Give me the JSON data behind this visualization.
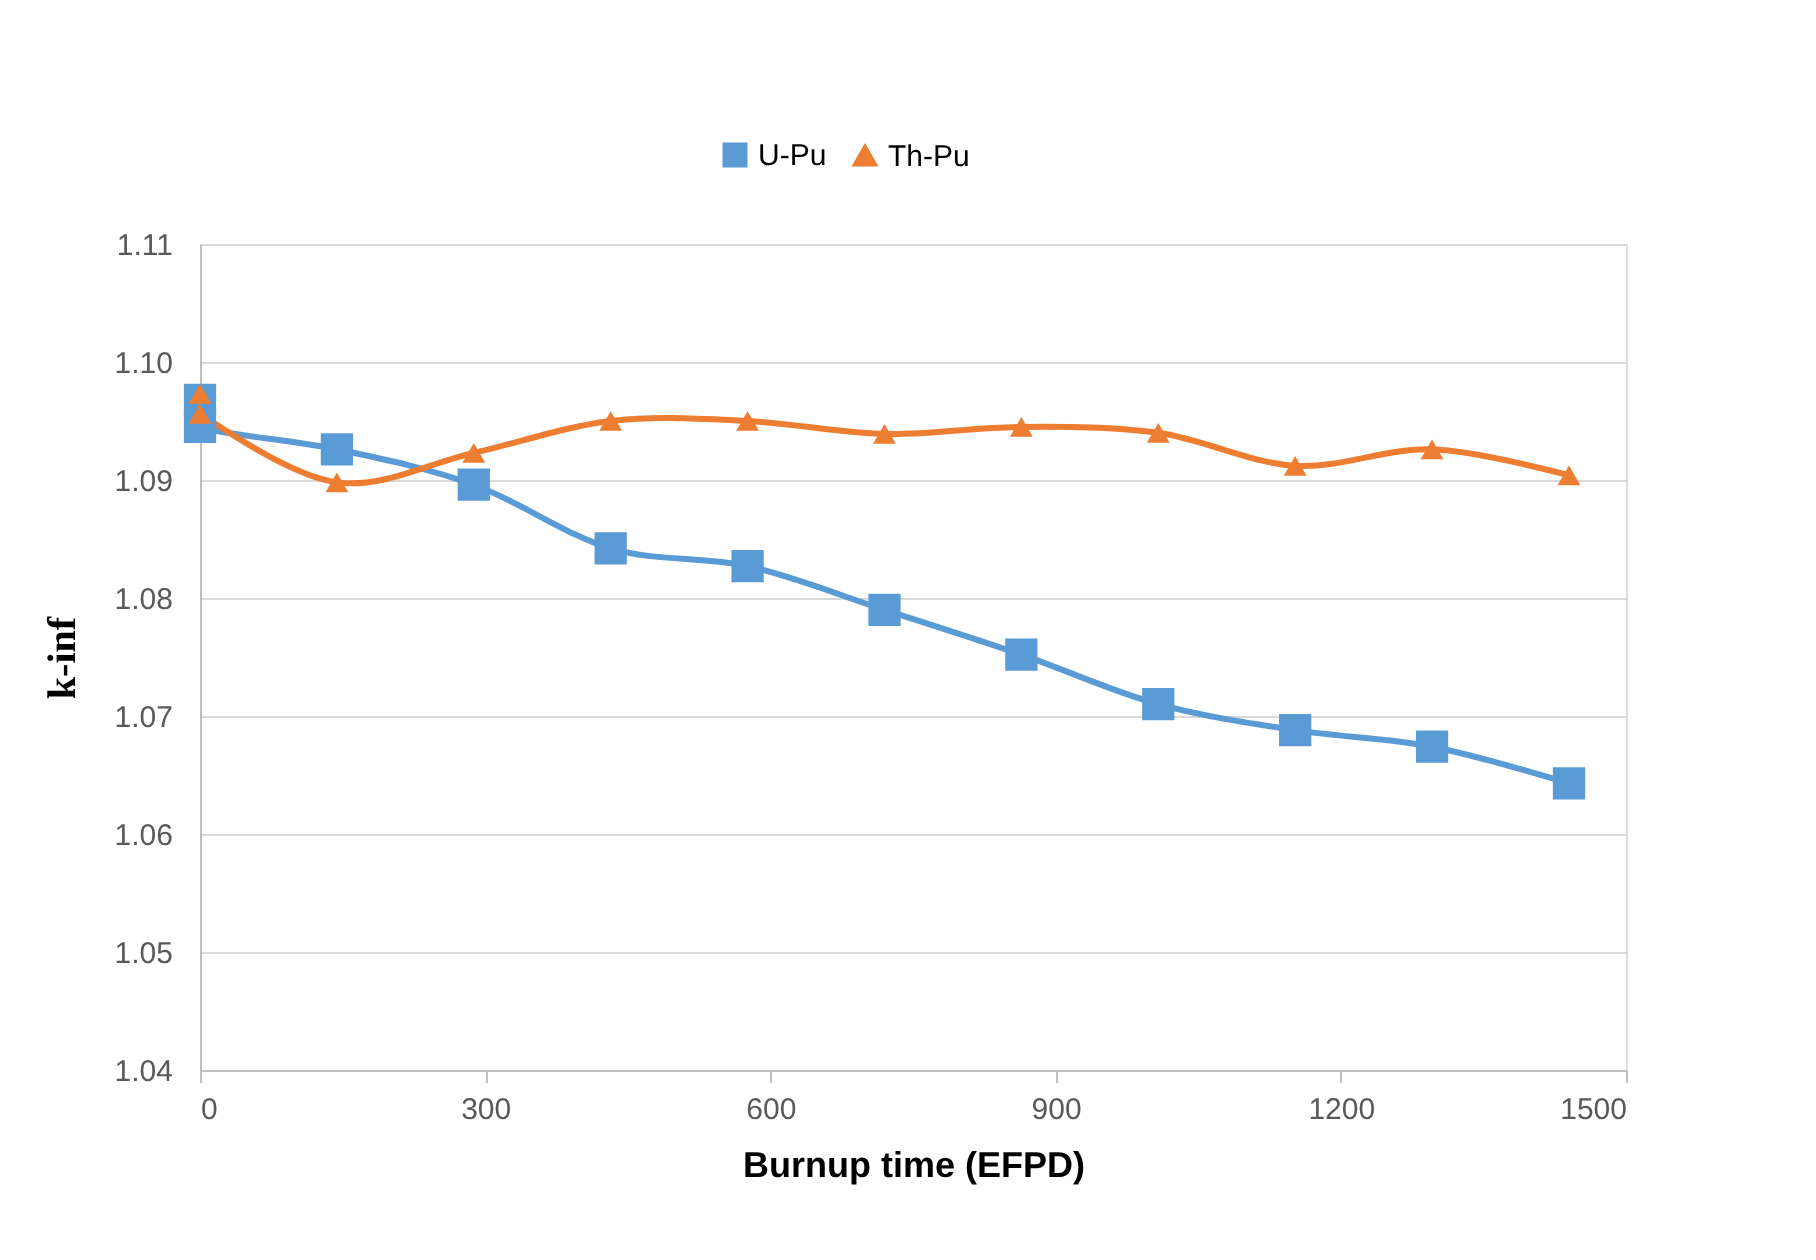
{
  "chart_data": {
    "type": "line",
    "xlabel": "Burnup time (EFPD)",
    "ylabel": "k-inf",
    "xlim": [
      0,
      1500
    ],
    "xticks": [
      0,
      300,
      600,
      900,
      1200,
      1500
    ],
    "ylim": [
      1.04,
      1.11
    ],
    "yticks": [
      1.04,
      1.05,
      1.06,
      1.07,
      1.08,
      1.09,
      {
        "value": 1.1,
        "label": "1.10"
      },
      1.11
    ],
    "grid": "y",
    "legend": "top",
    "line_style": "solid",
    "series": [
      {
        "name": "U-Pu",
        "color": "#5b9bd5",
        "marker": "square",
        "x": [
          0,
          0,
          144,
          288,
          432,
          576,
          720,
          864,
          1008,
          1152,
          1296,
          1440
        ],
        "values": [
          1.0968,
          1.0945,
          1.0926,
          1.0896,
          1.0842,
          1.0827,
          1.079,
          1.0752,
          1.071,
          1.0688,
          1.0674,
          1.0643
        ]
      },
      {
        "name": "Th-Pu",
        "color": "#ed7d31",
        "marker": "triangle",
        "x": [
          0,
          0,
          144,
          288,
          432,
          576,
          720,
          864,
          1008,
          1152,
          1296,
          1440
        ],
        "values": [
          1.0973,
          1.0956,
          1.0898,
          1.0923,
          1.095,
          1.095,
          1.0939,
          1.0945,
          1.094,
          1.0912,
          1.0926,
          1.0904
        ]
      }
    ]
  }
}
